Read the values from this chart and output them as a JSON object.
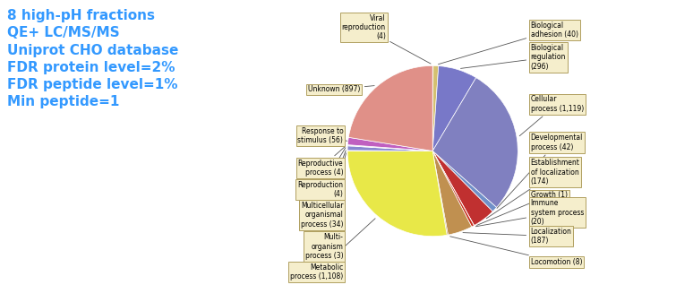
{
  "ordered_slices": [
    {
      "label": "Viral\nreproduction\n(4)",
      "value": 4,
      "color": "#e8c888",
      "label_side": "left"
    },
    {
      "label": "Biological\nadhesion (40)",
      "value": 40,
      "color": "#d4c070",
      "label_side": "right"
    },
    {
      "label": "Biological\nregulation\n(296)",
      "value": 296,
      "color": "#7878c8",
      "label_side": "right"
    },
    {
      "label": "Cellular\nprocess (1,119)",
      "value": 1119,
      "color": "#8080c0",
      "label_side": "right"
    },
    {
      "label": "Developmental\nprocess (42)",
      "value": 42,
      "color": "#7090c8",
      "label_side": "right"
    },
    {
      "label": "Establishment\nof localization\n(174)",
      "value": 174,
      "color": "#c03030",
      "label_side": "right"
    },
    {
      "label": "Growth (1)",
      "value": 1,
      "color": "#e060b0",
      "label_side": "right"
    },
    {
      "label": "Immune\nsystem process\n(20)",
      "value": 20,
      "color": "#c83020",
      "label_side": "right"
    },
    {
      "label": "Localization\n(187)",
      "value": 187,
      "color": "#c09050",
      "label_side": "right"
    },
    {
      "label": "Locomotion (8)",
      "value": 8,
      "color": "#a07030",
      "label_side": "right"
    },
    {
      "label": "Metabolic\nprocess (1,108)",
      "value": 1108,
      "color": "#e8e848",
      "label_side": "left"
    },
    {
      "label": "Multi-\norganism\nprocess (3)",
      "value": 3,
      "color": "#d8d840",
      "label_side": "left"
    },
    {
      "label": "Multicellular\norganismal\nprocess (34)",
      "value": 34,
      "color": "#8888d0",
      "label_side": "left"
    },
    {
      "label": "Reproduction\n(4)",
      "value": 4,
      "color": "#3838a8",
      "label_side": "left"
    },
    {
      "label": "Reproductive\nprocess (4)",
      "value": 4,
      "color": "#6060c0",
      "label_side": "left"
    },
    {
      "label": "Response to\nstimulus (56)",
      "value": 56,
      "color": "#c060c0",
      "label_side": "left"
    },
    {
      "label": "Unknown (897)",
      "value": 897,
      "color": "#e09088",
      "label_side": "left"
    }
  ],
  "annotation_text": "8 high-pH fractions\nQE+ LC/MS/MS\nUniprot CHO database\nFDR protein level=2%\nFDR peptide level=1%\nMin peptide=1",
  "annotation_color": "#3399ff",
  "background_color": "#ffffff",
  "label_fontsize": 5.5,
  "annotation_fontsize": 11,
  "bbox_fc": "#f5eecc",
  "bbox_ec": "#b0a060"
}
